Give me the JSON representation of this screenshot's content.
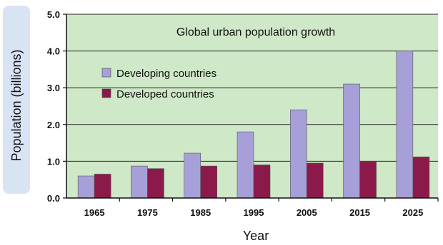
{
  "chart_data": {
    "type": "bar",
    "title": "Global urban population growth",
    "xlabel": "Year",
    "ylabel": "Population (billions)",
    "categories": [
      "1965",
      "1975",
      "1985",
      "1995",
      "2005",
      "2015",
      "2025"
    ],
    "series": [
      {
        "name": "Developing countries",
        "values": [
          0.6,
          0.87,
          1.22,
          1.8,
          2.4,
          3.1,
          4.0
        ],
        "color": "#a7a0d8"
      },
      {
        "name": "Developed countries",
        "values": [
          0.65,
          0.8,
          0.87,
          0.9,
          0.95,
          1.0,
          1.12
        ],
        "color": "#8b1a4a"
      }
    ],
    "ylim": [
      0,
      5
    ],
    "yticks": [
      "0.0",
      "1.0",
      "2.0",
      "3.0",
      "4.0",
      "5.0"
    ],
    "grid": true,
    "legend_position": "upper-left",
    "colors": {
      "plot_background": "#cfe8c7",
      "ylabel_background": "#d8e4f4",
      "gridline": "#222222"
    }
  }
}
